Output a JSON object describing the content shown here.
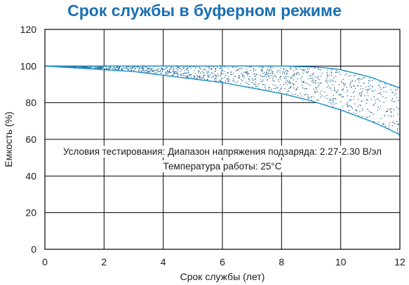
{
  "chart_data": {
    "type": "area",
    "title": "Срок службы в буферном режиме",
    "xlabel": "Срок службы (лет)",
    "ylabel": "Емкость (%)",
    "xlim": [
      0,
      12
    ],
    "ylim": [
      0,
      120
    ],
    "xticks": [
      "0",
      "2",
      "4",
      "6",
      "8",
      "10",
      "12"
    ],
    "yticks": [
      "0",
      "20",
      "40",
      "60",
      "80",
      "100",
      "120"
    ],
    "grid": true,
    "band_color": "#1a8fc6",
    "dot_color": "#1a5f8a",
    "series": [
      {
        "x": [
          0,
          1,
          2,
          3,
          4,
          5,
          6,
          7,
          8,
          9,
          9.5,
          10,
          10.5,
          11,
          11.5,
          12
        ],
        "y": [
          100,
          100,
          100,
          100,
          100,
          100,
          100,
          100,
          100,
          99.5,
          99,
          98,
          96,
          94,
          91,
          88
        ]
      },
      {
        "x": [
          0,
          1,
          2,
          3,
          4,
          5,
          6,
          7,
          8,
          8.5,
          9,
          9.5,
          10,
          10.5,
          11,
          11.5,
          12
        ],
        "y": [
          100,
          99,
          98,
          97,
          95,
          93,
          91,
          88,
          85,
          83,
          81,
          78.5,
          76,
          73,
          70,
          66.5,
          62.5
        ]
      }
    ],
    "annotations": [
      "Условия тестирования: Диапазон напряжения подзаряда: 2.27-2.30 В/эл",
      "Температура работы: 25°C"
    ]
  }
}
